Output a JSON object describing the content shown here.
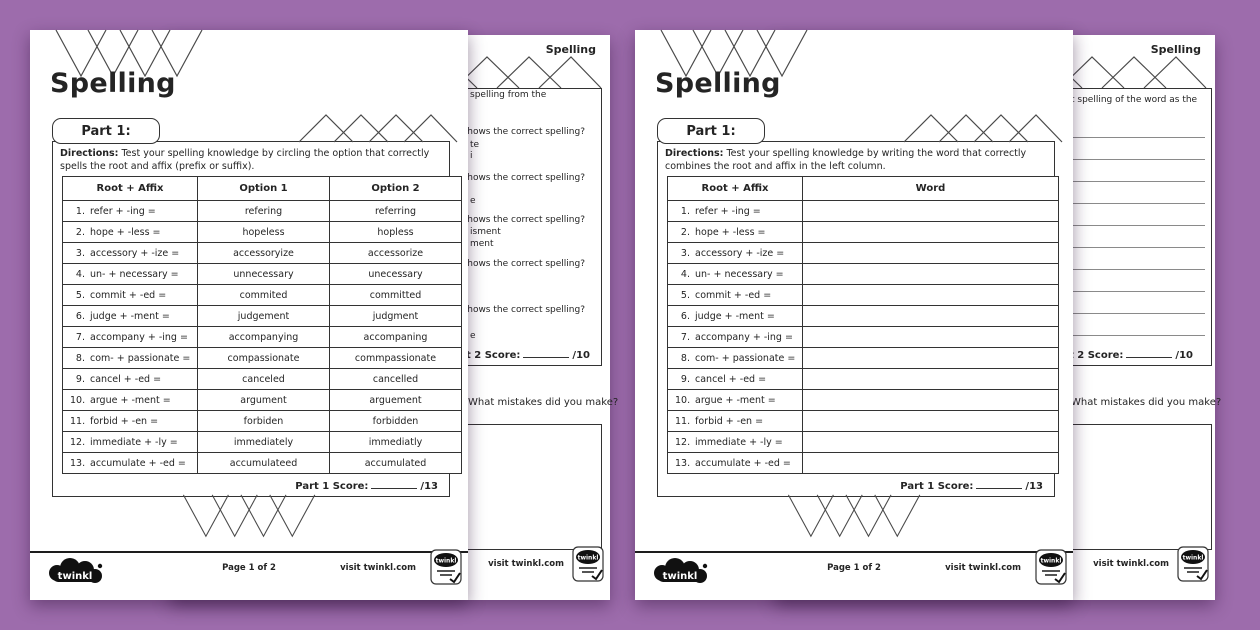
{
  "background_color": "#9d6cac",
  "sheet_left": {
    "title": "Spelling",
    "part_tab": "Part 1:",
    "directions_label": "Directions:",
    "directions_text": "Test your spelling knowledge by circling the option that correctly spells the root and affix (prefix or suffix).",
    "table": {
      "headers": [
        "Root + Affix",
        "Option 1",
        "Option 2"
      ],
      "rows": [
        {
          "num": "1.",
          "root": "refer + -ing =",
          "opt1": "refering",
          "opt2": "referring"
        },
        {
          "num": "2.",
          "root": "hope + -less =",
          "opt1": "hopeless",
          "opt2": "hopless"
        },
        {
          "num": "3.",
          "root": "accessory + -ize =",
          "opt1": "accessoryize",
          "opt2": "accessorize"
        },
        {
          "num": "4.",
          "root": "un- + necessary =",
          "opt1": "unnecessary",
          "opt2": "unecessary"
        },
        {
          "num": "5.",
          "root": "commit + -ed =",
          "opt1": "commited",
          "opt2": "committed"
        },
        {
          "num": "6.",
          "root": "judge + -ment =",
          "opt1": "judgement",
          "opt2": "judgment"
        },
        {
          "num": "7.",
          "root": "accompany + -ing =",
          "opt1": "accompanying",
          "opt2": "accompaning"
        },
        {
          "num": "8.",
          "root": "com- + passionate =",
          "opt1": "compassionate",
          "opt2": "commpassionate"
        },
        {
          "num": "9.",
          "root": "cancel + -ed =",
          "opt1": "canceled",
          "opt2": "cancelled"
        },
        {
          "num": "10.",
          "root": "argue + -ment =",
          "opt1": "argument",
          "opt2": "arguement"
        },
        {
          "num": "11.",
          "root": "forbid + -en =",
          "opt1": "forbiden",
          "opt2": "forbidden"
        },
        {
          "num": "12.",
          "root": "immediate + -ly =",
          "opt1": "immediately",
          "opt2": "immediatly"
        },
        {
          "num": "13.",
          "root": "accumulate + -ed =",
          "opt1": "accumulateed",
          "opt2": "accumulated"
        }
      ]
    },
    "score_label": "Part 1 Score:",
    "score_total": "/13",
    "footer": {
      "logo": "twinkl",
      "page": "Page 1 of 2",
      "visit": "visit twinkl.com"
    }
  },
  "sheet_right": {
    "title": "Spelling",
    "part_tab": "Part 1:",
    "directions_label": "Directions:",
    "directions_text": "Test your spelling knowledge by writing the word that correctly combines the root and affix in the left column.",
    "table": {
      "headers": [
        "Root + Affix",
        "Word"
      ],
      "rows": [
        {
          "num": "1.",
          "root": "refer + -ing =",
          "word": ""
        },
        {
          "num": "2.",
          "root": "hope + -less =",
          "word": ""
        },
        {
          "num": "3.",
          "root": "accessory + -ize =",
          "word": ""
        },
        {
          "num": "4.",
          "root": "un- + necessary =",
          "word": ""
        },
        {
          "num": "5.",
          "root": "commit + -ed =",
          "word": ""
        },
        {
          "num": "6.",
          "root": "judge + -ment =",
          "word": ""
        },
        {
          "num": "7.",
          "root": "accompany + -ing =",
          "word": ""
        },
        {
          "num": "8.",
          "root": "com- + passionate =",
          "word": ""
        },
        {
          "num": "9.",
          "root": "cancel + -ed =",
          "word": ""
        },
        {
          "num": "10.",
          "root": "argue + -ment =",
          "word": ""
        },
        {
          "num": "11.",
          "root": "forbid + -en =",
          "word": ""
        },
        {
          "num": "12.",
          "root": "immediate + -ly =",
          "word": ""
        },
        {
          "num": "13.",
          "root": "accumulate + -ed =",
          "word": ""
        }
      ]
    },
    "score_label": "Part 1 Score:",
    "score_total": "/13",
    "footer": {
      "logo": "twinkl",
      "page": "Page 1 of 2",
      "visit": "visit twinkl.com"
    }
  },
  "back_left": {
    "title": "Spelling",
    "fragments": [
      "spelling from the",
      "n shows the correct spelling?",
      "te",
      "i",
      "n shows the correct spelling?",
      "e",
      "n shows the correct spelling?",
      "isment",
      "ment",
      "n shows the correct spelling?",
      "n shows the correct spelling?",
      "e"
    ],
    "score_label": "Part 2 Score:",
    "score_total": "/10",
    "mistakes_prompt": "What mistakes did you make?",
    "visit": "visit twinkl.com"
  },
  "back_right": {
    "title": "Spelling",
    "fragment": "t spelling of the word as the",
    "score_label": "Part 2 Score:",
    "score_total": "/10",
    "mistakes_prompt": "What mistakes did you make?",
    "visit": "visit twinkl.com"
  }
}
